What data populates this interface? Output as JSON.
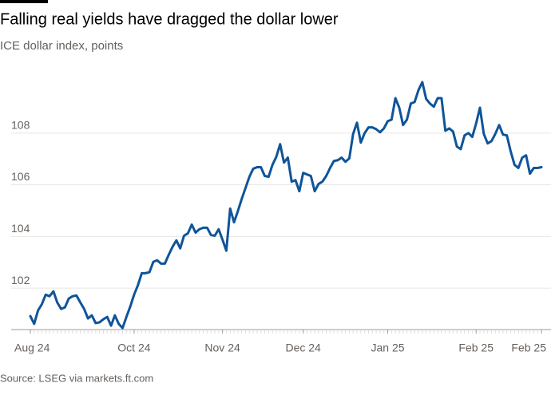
{
  "chart_data": {
    "type": "line",
    "title": "Falling real yields have dragged the dollar lower",
    "subtitle": "ICE dollar index, points",
    "source": "Source: LSEG via markets.ft.com",
    "color": "#0f5499",
    "grid": true,
    "ylim": [
      100.4,
      110.8
    ],
    "yticks": [
      102,
      104,
      106,
      108
    ],
    "categories": [
      "Aug 24",
      null,
      null,
      null,
      null,
      null,
      null,
      null,
      null,
      null,
      null,
      null,
      null,
      null,
      null,
      null,
      null,
      null,
      null,
      null,
      null,
      null,
      null,
      null,
      null,
      null,
      null,
      "Oct 24",
      null,
      null,
      null,
      null,
      null,
      null,
      null,
      null,
      null,
      null,
      null,
      null,
      null,
      null,
      null,
      null,
      null,
      null,
      null,
      null,
      null,
      null,
      "Nov 24",
      null,
      null,
      null,
      null,
      null,
      null,
      null,
      null,
      null,
      null,
      null,
      null,
      null,
      null,
      null,
      null,
      null,
      null,
      null,
      null,
      "Dec 24",
      null,
      null,
      null,
      null,
      null,
      null,
      null,
      null,
      null,
      null,
      null,
      null,
      null,
      null,
      null,
      null,
      null,
      null,
      null,
      null,
      null,
      "Jan 25",
      null,
      null,
      null,
      null,
      null,
      null,
      null,
      null,
      null,
      null,
      null,
      null,
      null,
      null,
      null,
      null,
      null,
      null,
      null,
      null,
      null,
      null,
      "Feb 25",
      null,
      null,
      null,
      null,
      null,
      null,
      null,
      null,
      null,
      null,
      null,
      null,
      null,
      null,
      null,
      null,
      "Feb 25"
    ],
    "values": [
      100.92,
      100.62,
      101.14,
      101.38,
      101.75,
      101.69,
      101.88,
      101.45,
      101.2,
      101.26,
      101.6,
      101.69,
      101.72,
      101.45,
      101.2,
      100.83,
      100.95,
      100.65,
      100.68,
      100.8,
      100.89,
      100.55,
      100.95,
      100.62,
      100.46,
      100.89,
      101.29,
      101.75,
      102.12,
      102.58,
      102.58,
      102.62,
      103.02,
      103.08,
      102.95,
      102.95,
      103.29,
      103.6,
      103.85,
      103.54,
      104.03,
      104.12,
      104.46,
      104.15,
      104.28,
      104.34,
      104.34,
      104.06,
      104.03,
      104.28,
      103.88,
      103.45,
      105.08,
      104.55,
      104.98,
      105.45,
      105.88,
      106.31,
      106.62,
      106.68,
      106.68,
      106.34,
      106.31,
      106.77,
      107.08,
      107.57,
      106.86,
      107.05,
      106.12,
      106.18,
      105.75,
      106.46,
      106.4,
      106.34,
      105.75,
      106.03,
      106.12,
      106.34,
      106.65,
      106.92,
      106.95,
      107.05,
      106.89,
      107.02,
      107.97,
      108.4,
      107.63,
      108.0,
      108.22,
      108.22,
      108.15,
      108.03,
      108.18,
      108.46,
      108.52,
      109.35,
      108.98,
      108.31,
      108.52,
      109.14,
      109.2,
      109.66,
      109.97,
      109.32,
      109.14,
      109.02,
      109.35,
      109.35,
      108.09,
      108.18,
      108.06,
      107.48,
      107.38,
      107.91,
      108.0,
      107.85,
      108.37,
      108.98,
      107.97,
      107.6,
      107.69,
      107.97,
      108.31,
      107.94,
      107.91,
      107.29,
      106.77,
      106.65,
      107.05,
      107.14,
      106.43,
      106.65,
      106.65,
      106.68
    ]
  }
}
